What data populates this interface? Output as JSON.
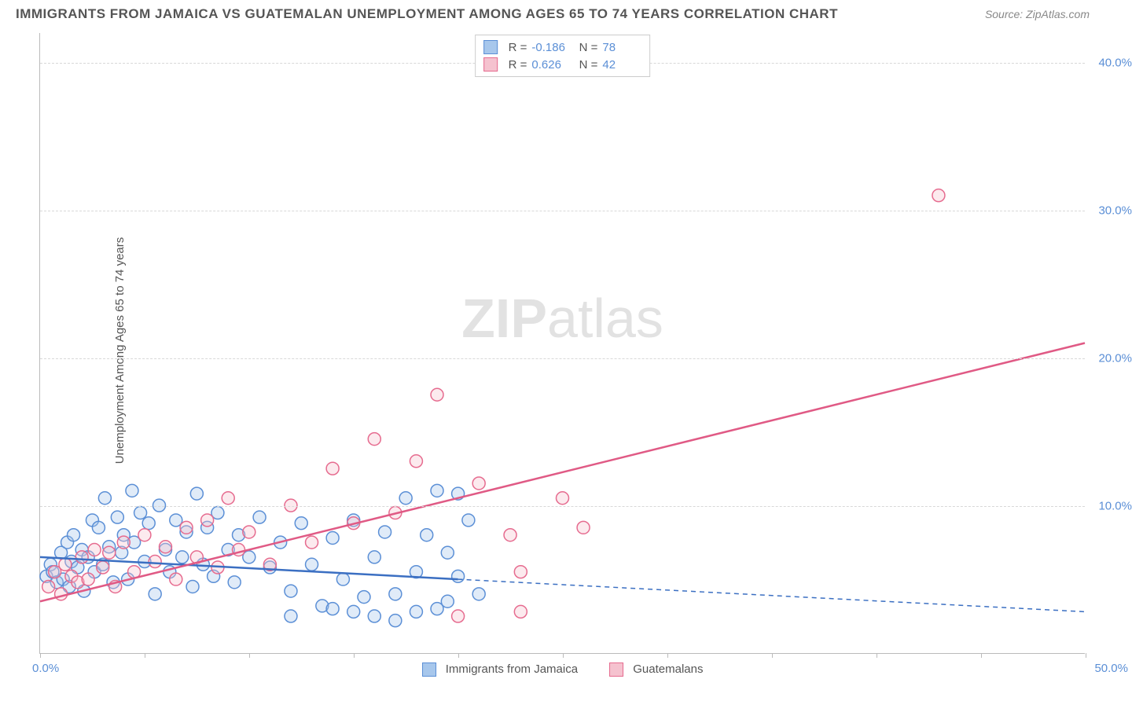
{
  "chart": {
    "type": "scatter",
    "title": "IMMIGRANTS FROM JAMAICA VS GUATEMALAN UNEMPLOYMENT AMONG AGES 65 TO 74 YEARS CORRELATION CHART",
    "source": "Source: ZipAtlas.com",
    "ylabel": "Unemployment Among Ages 65 to 74 years",
    "watermark": "ZIPatlas",
    "xlim": [
      0,
      50
    ],
    "ylim": [
      0,
      42
    ],
    "yticks": [
      10,
      20,
      30,
      40
    ],
    "ytick_labels": [
      "10.0%",
      "20.0%",
      "30.0%",
      "40.0%"
    ],
    "xticks": [
      0,
      5,
      10,
      15,
      20,
      25,
      30,
      35,
      40,
      45,
      50
    ],
    "xlabel_min": "0.0%",
    "xlabel_max": "50.0%",
    "background_color": "#ffffff",
    "grid_color": "#d8d8d8",
    "axis_color": "#bbbbbb",
    "tick_label_color": "#5b8fd6",
    "marker_radius": 8,
    "marker_stroke_width": 1.5,
    "fill_opacity": 0.35,
    "series": [
      {
        "name": "Immigrants from Jamaica",
        "color_fill": "#a7c7ec",
        "color_stroke": "#5b8fd6",
        "R": "-0.186",
        "N": "78",
        "regression": {
          "x1": 0,
          "y1": 6.5,
          "x2": 20,
          "y2": 5.0,
          "ext_x2": 50,
          "ext_y2": 2.8,
          "dash_from_x": 20,
          "line_color": "#3b6fc2",
          "line_width": 2.5
        },
        "points": [
          [
            0.3,
            5.2
          ],
          [
            0.5,
            6.0
          ],
          [
            0.6,
            5.5
          ],
          [
            0.8,
            4.8
          ],
          [
            1.0,
            6.8
          ],
          [
            1.1,
            5.0
          ],
          [
            1.3,
            7.5
          ],
          [
            1.4,
            4.5
          ],
          [
            1.5,
            6.2
          ],
          [
            1.6,
            8.0
          ],
          [
            1.8,
            5.8
          ],
          [
            2.0,
            7.0
          ],
          [
            2.1,
            4.2
          ],
          [
            2.3,
            6.5
          ],
          [
            2.5,
            9.0
          ],
          [
            2.6,
            5.5
          ],
          [
            2.8,
            8.5
          ],
          [
            3.0,
            6.0
          ],
          [
            3.1,
            10.5
          ],
          [
            3.3,
            7.2
          ],
          [
            3.5,
            4.8
          ],
          [
            3.7,
            9.2
          ],
          [
            3.9,
            6.8
          ],
          [
            4.0,
            8.0
          ],
          [
            4.2,
            5.0
          ],
          [
            4.4,
            11.0
          ],
          [
            4.5,
            7.5
          ],
          [
            4.8,
            9.5
          ],
          [
            5.0,
            6.2
          ],
          [
            5.2,
            8.8
          ],
          [
            5.5,
            4.0
          ],
          [
            5.7,
            10.0
          ],
          [
            6.0,
            7.0
          ],
          [
            6.2,
            5.5
          ],
          [
            6.5,
            9.0
          ],
          [
            6.8,
            6.5
          ],
          [
            7.0,
            8.2
          ],
          [
            7.3,
            4.5
          ],
          [
            7.5,
            10.8
          ],
          [
            7.8,
            6.0
          ],
          [
            8.0,
            8.5
          ],
          [
            8.3,
            5.2
          ],
          [
            8.5,
            9.5
          ],
          [
            9.0,
            7.0
          ],
          [
            9.3,
            4.8
          ],
          [
            9.5,
            8.0
          ],
          [
            10.0,
            6.5
          ],
          [
            10.5,
            9.2
          ],
          [
            11.0,
            5.8
          ],
          [
            11.5,
            7.5
          ],
          [
            12.0,
            4.2
          ],
          [
            12.5,
            8.8
          ],
          [
            13.0,
            6.0
          ],
          [
            13.5,
            3.2
          ],
          [
            14.0,
            7.8
          ],
          [
            14.5,
            5.0
          ],
          [
            15.0,
            9.0
          ],
          [
            15.5,
            3.8
          ],
          [
            16.0,
            6.5
          ],
          [
            16.5,
            8.2
          ],
          [
            17.0,
            4.0
          ],
          [
            17.5,
            10.5
          ],
          [
            18.0,
            5.5
          ],
          [
            18.5,
            8.0
          ],
          [
            19.0,
            3.0
          ],
          [
            19.5,
            6.8
          ],
          [
            20.0,
            5.2
          ],
          [
            15.0,
            2.8
          ],
          [
            16.0,
            2.5
          ],
          [
            17.0,
            2.2
          ],
          [
            18.0,
            2.8
          ],
          [
            19.0,
            11.0
          ],
          [
            20.5,
            9.0
          ],
          [
            21.0,
            4.0
          ],
          [
            19.5,
            3.5
          ],
          [
            20.0,
            10.8
          ],
          [
            14.0,
            3.0
          ],
          [
            12.0,
            2.5
          ]
        ]
      },
      {
        "name": "Guatemalans",
        "color_fill": "#f5c2cf",
        "color_stroke": "#e66b8f",
        "R": "0.626",
        "N": "42",
        "regression": {
          "x1": 0,
          "y1": 3.5,
          "x2": 50,
          "y2": 21.0,
          "line_color": "#e05a85",
          "line_width": 2.5
        },
        "points": [
          [
            0.4,
            4.5
          ],
          [
            0.7,
            5.5
          ],
          [
            1.0,
            4.0
          ],
          [
            1.2,
            6.0
          ],
          [
            1.5,
            5.2
          ],
          [
            1.8,
            4.8
          ],
          [
            2.0,
            6.5
          ],
          [
            2.3,
            5.0
          ],
          [
            2.6,
            7.0
          ],
          [
            3.0,
            5.8
          ],
          [
            3.3,
            6.8
          ],
          [
            3.6,
            4.5
          ],
          [
            4.0,
            7.5
          ],
          [
            4.5,
            5.5
          ],
          [
            5.0,
            8.0
          ],
          [
            5.5,
            6.2
          ],
          [
            6.0,
            7.2
          ],
          [
            6.5,
            5.0
          ],
          [
            7.0,
            8.5
          ],
          [
            7.5,
            6.5
          ],
          [
            8.0,
            9.0
          ],
          [
            8.5,
            5.8
          ],
          [
            9.0,
            10.5
          ],
          [
            9.5,
            7.0
          ],
          [
            10.0,
            8.2
          ],
          [
            11.0,
            6.0
          ],
          [
            12.0,
            10.0
          ],
          [
            13.0,
            7.5
          ],
          [
            14.0,
            12.5
          ],
          [
            15.0,
            8.8
          ],
          [
            16.0,
            14.5
          ],
          [
            17.0,
            9.5
          ],
          [
            18.0,
            13.0
          ],
          [
            19.0,
            17.5
          ],
          [
            21.0,
            11.5
          ],
          [
            22.5,
            8.0
          ],
          [
            23.0,
            5.5
          ],
          [
            25.0,
            10.5
          ],
          [
            26.0,
            8.5
          ],
          [
            23.0,
            2.8
          ],
          [
            43.0,
            31.0
          ],
          [
            20.0,
            2.5
          ]
        ]
      }
    ],
    "bottom_legend": [
      {
        "label": "Immigrants from Jamaica",
        "fill": "#a7c7ec",
        "stroke": "#5b8fd6"
      },
      {
        "label": "Guatemalans",
        "fill": "#f5c2cf",
        "stroke": "#e66b8f"
      }
    ]
  }
}
